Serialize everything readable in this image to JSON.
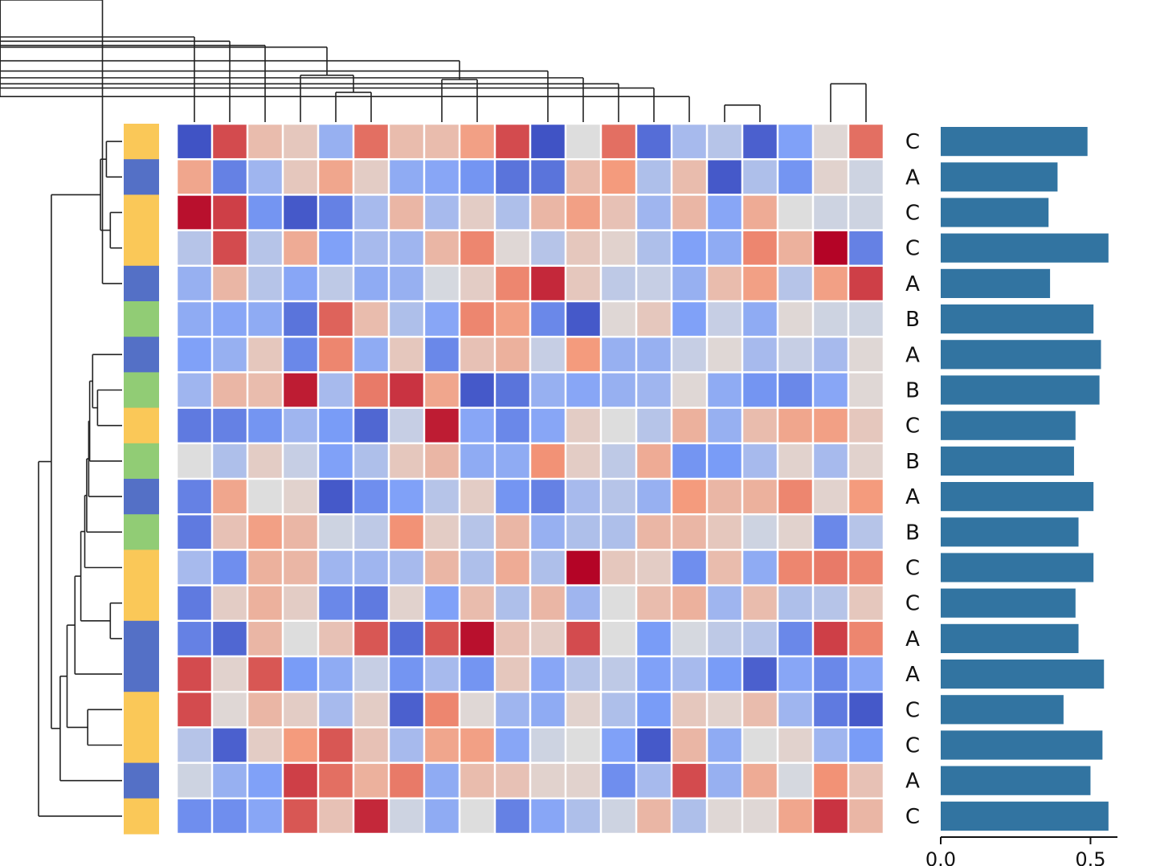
{
  "chart_data": {
    "type": "heatmap",
    "title": "",
    "colormap": "coolwarm",
    "value_range": [
      -2.5,
      2.5
    ],
    "n_rows": 20,
    "n_cols": 20,
    "row_groups": [
      "C",
      "A",
      "C",
      "C",
      "A",
      "B",
      "A",
      "B",
      "C",
      "B",
      "A",
      "B",
      "C",
      "C",
      "A",
      "A",
      "C",
      "C",
      "A",
      "C"
    ],
    "group_colors": {
      "A": "#5470c6",
      "B": "#91cc75",
      "C": "#fac858"
    },
    "matrix": [
      [
        -2.4,
        1.9,
        0.6,
        0.4,
        -0.9,
        1.6,
        0.6,
        0.6,
        1.1,
        1.9,
        -2.4,
        0.0,
        1.6,
        -2.0,
        -0.7,
        -0.5,
        -2.2,
        -1.2,
        0.1,
        1.6
      ],
      [
        1.0,
        -1.7,
        -0.8,
        0.4,
        1.0,
        0.3,
        -1.0,
        -1.1,
        -1.4,
        -1.9,
        -1.9,
        0.6,
        1.2,
        -0.6,
        0.6,
        -2.3,
        -0.6,
        -1.4,
        0.2,
        -0.2
      ],
      [
        2.4,
        2.0,
        -1.4,
        -2.3,
        -1.7,
        -0.7,
        0.7,
        -0.7,
        0.3,
        -0.6,
        0.7,
        1.1,
        0.5,
        -0.8,
        0.7,
        -1.1,
        0.9,
        0.0,
        -0.2,
        -0.2
      ],
      [
        -0.5,
        1.9,
        -0.5,
        0.9,
        -1.2,
        -0.7,
        -0.8,
        0.7,
        1.4,
        0.1,
        -0.5,
        0.4,
        0.2,
        -0.6,
        -1.2,
        -1.0,
        1.4,
        0.8,
        2.5,
        -1.7
      ],
      [
        -0.9,
        0.7,
        -0.5,
        -1.1,
        -0.4,
        -1.0,
        -0.9,
        -0.1,
        0.3,
        1.4,
        2.2,
        0.4,
        -0.4,
        -0.3,
        -0.9,
        0.6,
        1.1,
        -0.5,
        1.1,
        2.0
      ],
      [
        -1.0,
        -1.1,
        -1.0,
        -1.9,
        1.7,
        0.6,
        -0.6,
        -1.1,
        1.4,
        1.1,
        -1.6,
        -2.3,
        0.1,
        0.4,
        -1.2,
        -0.3,
        -1.0,
        0.1,
        -0.2,
        -0.2
      ],
      [
        -1.2,
        -0.9,
        0.4,
        -1.6,
        1.4,
        -1.0,
        0.4,
        -1.6,
        0.5,
        0.8,
        -0.3,
        1.2,
        -0.9,
        -0.9,
        -0.3,
        0.1,
        -0.7,
        -0.3,
        -0.7,
        0.1
      ],
      [
        -0.8,
        0.7,
        0.6,
        2.3,
        -0.7,
        1.5,
        2.1,
        1.0,
        -2.3,
        -1.9,
        -0.9,
        -1.1,
        -0.9,
        -0.8,
        0.1,
        -1.0,
        -1.4,
        -1.6,
        -1.1,
        0.1
      ],
      [
        -1.8,
        -1.7,
        -1.4,
        -0.8,
        -1.3,
        -2.1,
        -0.3,
        2.3,
        -1.1,
        -1.6,
        -1.1,
        0.3,
        0.0,
        -0.5,
        0.8,
        -0.9,
        0.6,
        1.0,
        1.1,
        0.4
      ],
      [
        0.0,
        -0.6,
        0.3,
        -0.3,
        -1.2,
        -0.6,
        0.4,
        0.7,
        -1.0,
        -1.0,
        1.3,
        0.3,
        -0.4,
        0.9,
        -1.4,
        -1.3,
        -0.7,
        0.2,
        -0.7,
        0.2
      ],
      [
        -1.7,
        1.0,
        0.0,
        0.2,
        -2.3,
        -1.5,
        -1.2,
        -0.5,
        0.3,
        -1.4,
        -1.7,
        -0.7,
        -0.5,
        -0.9,
        1.2,
        0.7,
        0.8,
        1.4,
        0.2,
        1.2
      ],
      [
        -1.8,
        0.5,
        1.1,
        0.7,
        -0.2,
        -0.4,
        1.3,
        0.3,
        -0.5,
        0.7,
        -0.9,
        -0.6,
        -0.6,
        0.7,
        0.7,
        0.4,
        -0.2,
        0.2,
        -1.6,
        -0.5
      ],
      [
        -0.7,
        -1.5,
        0.8,
        0.7,
        -0.8,
        -0.8,
        -0.7,
        0.7,
        -0.6,
        0.9,
        -0.6,
        2.5,
        0.4,
        0.3,
        -1.5,
        0.6,
        -1.0,
        1.4,
        1.5,
        1.4
      ],
      [
        -1.8,
        0.3,
        0.8,
        0.3,
        -1.6,
        -1.8,
        0.2,
        -1.2,
        0.6,
        -0.6,
        0.7,
        -0.8,
        0.0,
        0.6,
        0.8,
        -0.8,
        0.6,
        -0.6,
        -0.5,
        0.4
      ],
      [
        -1.7,
        -2.1,
        0.7,
        0.0,
        0.5,
        1.8,
        -2.0,
        1.8,
        2.4,
        0.5,
        0.3,
        1.9,
        0.0,
        -1.3,
        -0.1,
        -0.4,
        -0.5,
        -1.6,
        2.0,
        1.4
      ],
      [
        1.9,
        0.2,
        1.8,
        -1.3,
        -1.0,
        -0.3,
        -1.4,
        -0.7,
        -1.4,
        0.4,
        -1.1,
        -0.5,
        -0.4,
        -1.2,
        -0.7,
        -1.3,
        -2.2,
        -1.1,
        -1.6,
        -1.1
      ],
      [
        1.9,
        0.1,
        0.7,
        0.3,
        -0.7,
        0.3,
        -2.2,
        1.4,
        0.1,
        -0.8,
        -1.0,
        0.2,
        -0.6,
        -1.3,
        0.4,
        0.2,
        0.6,
        -0.8,
        -1.8,
        -2.3
      ],
      [
        -0.5,
        -2.2,
        0.3,
        1.2,
        1.8,
        0.5,
        -0.7,
        1.0,
        1.1,
        -1.1,
        -0.2,
        0.0,
        -1.2,
        -2.3,
        0.7,
        -1.0,
        0.0,
        0.2,
        -0.8,
        -1.3
      ],
      [
        -0.2,
        -0.9,
        -1.2,
        2.0,
        1.6,
        0.8,
        1.5,
        -1.0,
        0.6,
        0.5,
        0.2,
        0.2,
        -1.5,
        -0.7,
        1.9,
        -0.9,
        0.9,
        -0.1,
        1.3,
        0.5
      ],
      [
        -1.5,
        -1.5,
        -1.1,
        1.8,
        0.5,
        2.2,
        -0.2,
        -1.0,
        0.0,
        -1.7,
        -1.1,
        -0.6,
        -0.2,
        0.7,
        -0.6,
        0.1,
        0.1,
        1.0,
        2.1,
        0.7
      ]
    ],
    "row_labels": [
      "C",
      "A",
      "C",
      "C",
      "A",
      "B",
      "A",
      "B",
      "C",
      "B",
      "A",
      "B",
      "C",
      "C",
      "A",
      "A",
      "C",
      "C",
      "A",
      "C"
    ],
    "bar": {
      "values": [
        0.49,
        0.39,
        0.36,
        0.56,
        0.365,
        0.51,
        0.535,
        0.53,
        0.45,
        0.445,
        0.51,
        0.46,
        0.51,
        0.45,
        0.46,
        0.545,
        0.41,
        0.54,
        0.5,
        0.56
      ],
      "color": "#3274a1",
      "xlim": [
        0,
        0.59
      ],
      "ticks": [
        "0.0",
        "0.5"
      ],
      "tick_values": [
        0,
        0.5
      ]
    },
    "row_dendrogram": {
      "leaves": 20,
      "merges": [
        [
          2,
          3,
          0.12
        ],
        [
          4,
          21,
          0.2
        ],
        [
          0,
          1,
          0.16
        ],
        [
          20,
          22,
          0.22
        ],
        [
          13,
          14,
          0.12
        ],
        [
          7,
          8,
          0.25
        ],
        [
          6,
          25,
          0.3
        ],
        [
          9,
          26,
          0.33
        ],
        [
          10,
          27,
          0.34
        ],
        [
          11,
          28,
          0.36
        ],
        [
          12,
          29,
          0.38
        ],
        [
          24,
          30,
          0.42
        ],
        [
          15,
          31,
          0.48
        ],
        [
          16,
          17,
          0.35
        ],
        [
          33,
          32,
          0.56
        ],
        [
          34,
          18,
          0.63
        ],
        [
          23,
          35,
          0.72
        ],
        [
          36,
          19,
          0.85
        ]
      ]
    },
    "col_dendrogram": {
      "leaves": 20,
      "merges": [
        [
          4,
          5,
          0.35
        ],
        [
          3,
          20,
          0.55
        ],
        [
          7,
          8,
          0.5
        ],
        [
          18,
          19,
          0.45
        ],
        [
          15,
          16,
          0.2
        ],
        [
          14,
          37,
          0.3
        ],
        [
          13,
          38,
          0.4
        ],
        [
          12,
          39,
          0.45
        ],
        [
          11,
          40,
          0.52
        ],
        [
          10,
          41,
          0.6
        ],
        [
          22,
          42,
          0.72
        ],
        [
          36,
          43,
          0.8
        ],
        [
          21,
          44,
          0.88
        ],
        [
          2,
          45,
          0.9
        ],
        [
          1,
          46,
          0.95
        ],
        [
          0,
          47,
          1.0
        ]
      ]
    }
  }
}
